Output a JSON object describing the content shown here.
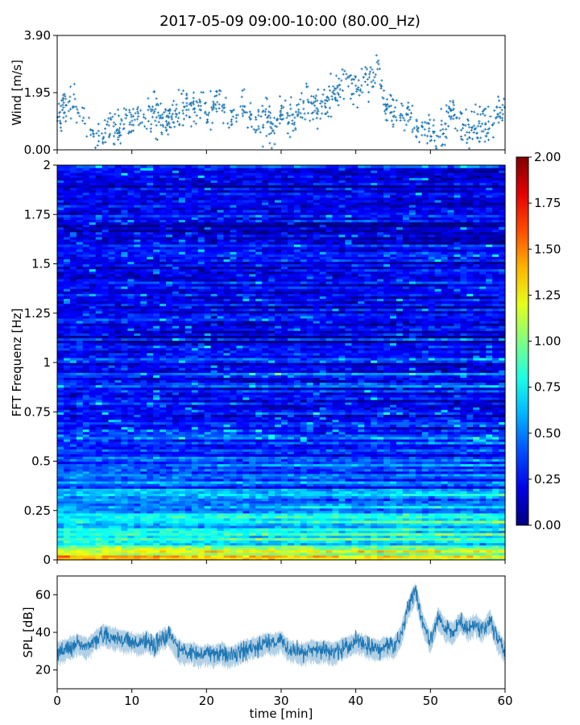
{
  "figure": {
    "title": "2017-05-09 09:00-10:00 (80.00_Hz)"
  },
  "chart_data": [
    {
      "type": "scatter",
      "panel": "wind",
      "ylabel": "Wind [m/s]",
      "ylim": [
        0,
        3.9
      ],
      "yticks": [
        0.0,
        1.95,
        3.9
      ],
      "ytick_labels": [
        "0.00",
        "1.95",
        "3.90"
      ],
      "xlim": [
        0,
        60
      ],
      "color": "#1f77b4",
      "marker": "+",
      "x": [
        0,
        1,
        2,
        3,
        4,
        5,
        6,
        7,
        8,
        9,
        10,
        11,
        12,
        13,
        14,
        15,
        16,
        17,
        18,
        19,
        20,
        21,
        22,
        23,
        24,
        25,
        26,
        27,
        28,
        29,
        30,
        31,
        32,
        33,
        34,
        35,
        36,
        37,
        38,
        39,
        40,
        41,
        42,
        43,
        44,
        45,
        46,
        47,
        48,
        49,
        50,
        51,
        52,
        53,
        54,
        55,
        56,
        57,
        58,
        59,
        60
      ],
      "y": [
        1.2,
        1.4,
        1.7,
        1.1,
        0.7,
        0.6,
        0.5,
        0.8,
        0.7,
        1.0,
        0.8,
        1.2,
        1.1,
        1.3,
        1.0,
        1.1,
        1.2,
        1.5,
        1.4,
        1.6,
        1.3,
        1.5,
        1.8,
        1.2,
        0.9,
        1.6,
        1.1,
        1.0,
        0.9,
        0.8,
        1.3,
        1.0,
        1.1,
        1.5,
        1.6,
        1.3,
        1.7,
        1.9,
        2.2,
        2.5,
        1.9,
        2.6,
        2.4,
        2.9,
        1.4,
        1.3,
        1.1,
        1.2,
        0.9,
        0.7,
        0.6,
        0.5,
        0.9,
        1.2,
        0.8,
        0.7,
        0.8,
        0.9,
        0.9,
        1.4,
        1.0
      ]
    },
    {
      "type": "heatmap",
      "panel": "spectrogram",
      "ylabel": "FFT Frequenz [Hz]",
      "ylim": [
        0,
        2
      ],
      "yticks": [
        0,
        0.25,
        0.5,
        0.75,
        1,
        1.25,
        1.5,
        1.75,
        2
      ],
      "ytick_labels": [
        "0",
        "0.25",
        "0.5",
        "0.75",
        "1",
        "1.25",
        "1.5",
        "1.75",
        "2"
      ],
      "xlim": [
        0,
        60
      ],
      "colormap": "jet",
      "colorbar": {
        "range": [
          0,
          2
        ],
        "ticks": [
          0,
          0.25,
          0.5,
          0.75,
          1,
          1.25,
          1.5,
          1.75,
          2
        ],
        "tick_labels": [
          "0.00",
          "0.25",
          "0.50",
          "0.75",
          "1.00",
          "1.25",
          "1.50",
          "1.75",
          "2.00"
        ]
      },
      "freq_profile": [
        {
          "f": 0.0,
          "level": 1.6
        },
        {
          "f": 0.03,
          "level": 1.2
        },
        {
          "f": 0.08,
          "level": 0.8
        },
        {
          "f": 0.25,
          "level": 0.6
        },
        {
          "f": 0.5,
          "level": 0.35
        },
        {
          "f": 1.0,
          "level": 0.25
        },
        {
          "f": 1.5,
          "level": 0.22
        },
        {
          "f": 2.0,
          "level": 0.2
        }
      ]
    },
    {
      "type": "line",
      "panel": "spl",
      "ylabel": "SPL [dB]",
      "xlabel": "time [min]",
      "ylim": [
        10,
        70
      ],
      "yticks": [
        20,
        40,
        60
      ],
      "ytick_labels": [
        "20",
        "40",
        "60"
      ],
      "xlim": [
        0,
        60
      ],
      "xticks": [
        0,
        10,
        20,
        30,
        40,
        50,
        60
      ],
      "xtick_labels": [
        "0",
        "10",
        "20",
        "30",
        "40",
        "50",
        "60"
      ],
      "color": "#1f77b4",
      "x": [
        0,
        1,
        2,
        3,
        4,
        5,
        6,
        7,
        8,
        9,
        10,
        11,
        12,
        13,
        14,
        15,
        16,
        17,
        18,
        19,
        20,
        21,
        22,
        23,
        24,
        25,
        26,
        27,
        28,
        29,
        30,
        31,
        32,
        33,
        34,
        35,
        36,
        37,
        38,
        39,
        40,
        41,
        42,
        43,
        44,
        45,
        46,
        47,
        48,
        49,
        50,
        51,
        52,
        53,
        54,
        55,
        56,
        57,
        58,
        59,
        60
      ],
      "y": [
        30,
        31,
        33,
        34,
        32,
        36,
        39,
        38,
        37,
        36,
        35,
        34,
        36,
        33,
        37,
        38,
        32,
        29,
        30,
        28,
        29,
        28,
        30,
        27,
        29,
        31,
        32,
        33,
        35,
        34,
        36,
        31,
        30,
        29,
        31,
        30,
        31,
        29,
        32,
        33,
        35,
        34,
        32,
        31,
        33,
        32,
        38,
        53,
        62,
        45,
        35,
        48,
        42,
        40,
        46,
        42,
        45,
        41,
        47,
        36,
        30
      ]
    }
  ]
}
